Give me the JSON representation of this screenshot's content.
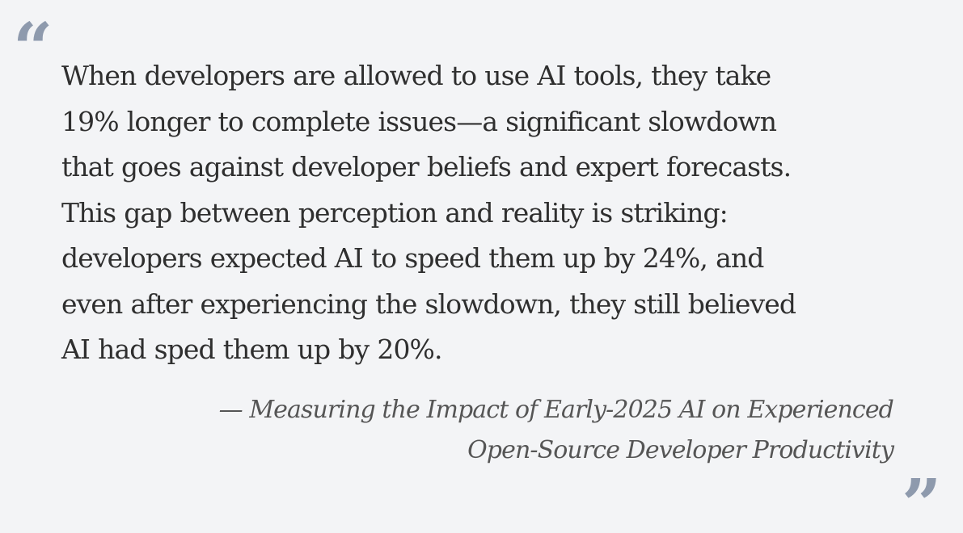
{
  "quote": {
    "open_mark": "“",
    "close_mark": "”",
    "lines": [
      "When developers are allowed to use AI tools, they take",
      "19% longer to complete issues—a significant slowdown",
      "that goes against developer beliefs and expert forecasts.",
      "This gap between perception and reality is striking:",
      "developers expected AI to speed them up by 24%, and",
      "even after experiencing the slowdown, they still believed",
      "AI had sped them up by 20%."
    ],
    "attribution_lines": [
      "— Measuring the Impact of Early-2025 AI on Experienced",
      "Open-Source Developer Productivity"
    ]
  },
  "colors": {
    "background": "#f3f4f6",
    "quote_mark": "#8e9aad",
    "body_text": "#2f2f2f",
    "attribution_text": "#555555"
  }
}
